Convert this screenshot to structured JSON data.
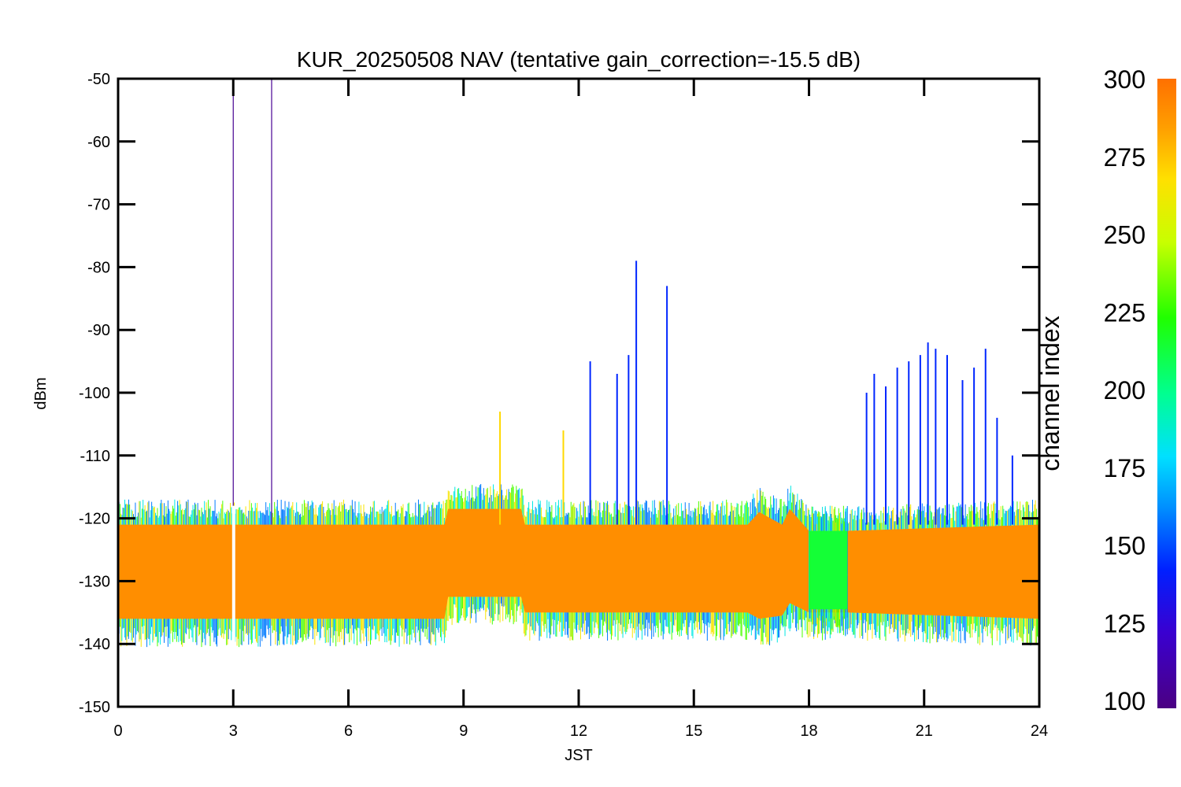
{
  "chart_data": {
    "type": "line",
    "title": "KUR_20250508 NAV (tentative gain_correction=-15.5 dB)",
    "xlabel": "JST",
    "ylabel": "dBm",
    "xlim": [
      0,
      24
    ],
    "ylim": [
      -150,
      -50
    ],
    "x_ticks": [
      "0",
      "3",
      "6",
      "9",
      "12",
      "15",
      "18",
      "21",
      "24"
    ],
    "y_ticks": [
      "-50",
      "-60",
      "-70",
      "-80",
      "-90",
      "-100",
      "-110",
      "-120",
      "-130",
      "-140",
      "-150"
    ],
    "colorbar": {
      "label": "channel index",
      "range": [
        100,
        300
      ],
      "ticks": [
        "300",
        "275",
        "250",
        "225",
        "200",
        "175",
        "150",
        "125",
        "100"
      ]
    },
    "series": [
      {
        "color_index": 290,
        "x": [
          0,
          8.5,
          8.6,
          10.5,
          10.6,
          16.4,
          16.7,
          17.3,
          17.5,
          18.0,
          19.0,
          24
        ],
        "y": [
          -128.5,
          -128.5,
          -125.5,
          -125.5,
          -128,
          -128,
          -127,
          -128,
          -126.5,
          -128.5,
          -128.5,
          -128.5
        ],
        "upper": [
          -121,
          -121,
          -118.5,
          -118.5,
          -121,
          -121,
          -119,
          -121,
          -118.5,
          -122,
          -122,
          -121
        ],
        "lower": [
          -136,
          -136,
          -132.5,
          -132.5,
          -135,
          -135,
          -136,
          -135.5,
          -133.5,
          -135,
          -135,
          -136
        ]
      },
      {
        "color_index": 215,
        "x": [
          18.0,
          19.0
        ],
        "y": [
          -129,
          -129
        ],
        "upper": [
          -122,
          -122
        ],
        "lower": [
          -134.5,
          -134.5
        ]
      },
      {
        "color_index": 145,
        "spikes": [
          [
            12.3,
            -95
          ],
          [
            13.0,
            -97
          ],
          [
            13.3,
            -94
          ],
          [
            13.5,
            -79
          ],
          [
            14.3,
            -83
          ],
          [
            19.5,
            -100
          ],
          [
            19.7,
            -97
          ],
          [
            20.0,
            -99
          ],
          [
            20.3,
            -96
          ],
          [
            20.6,
            -95
          ],
          [
            20.9,
            -94
          ],
          [
            21.1,
            -92
          ],
          [
            21.3,
            -93
          ],
          [
            21.6,
            -94
          ],
          [
            22.0,
            -98
          ],
          [
            22.3,
            -96
          ],
          [
            22.6,
            -93
          ],
          [
            22.9,
            -104
          ],
          [
            23.3,
            -110
          ]
        ]
      },
      {
        "color_index": 105,
        "spikes": [
          [
            3.0,
            -50
          ],
          [
            4.0,
            -50
          ]
        ]
      },
      {
        "color_index": 270,
        "spikes": [
          [
            9.95,
            -103
          ],
          [
            11.6,
            -106
          ]
        ]
      }
    ]
  }
}
